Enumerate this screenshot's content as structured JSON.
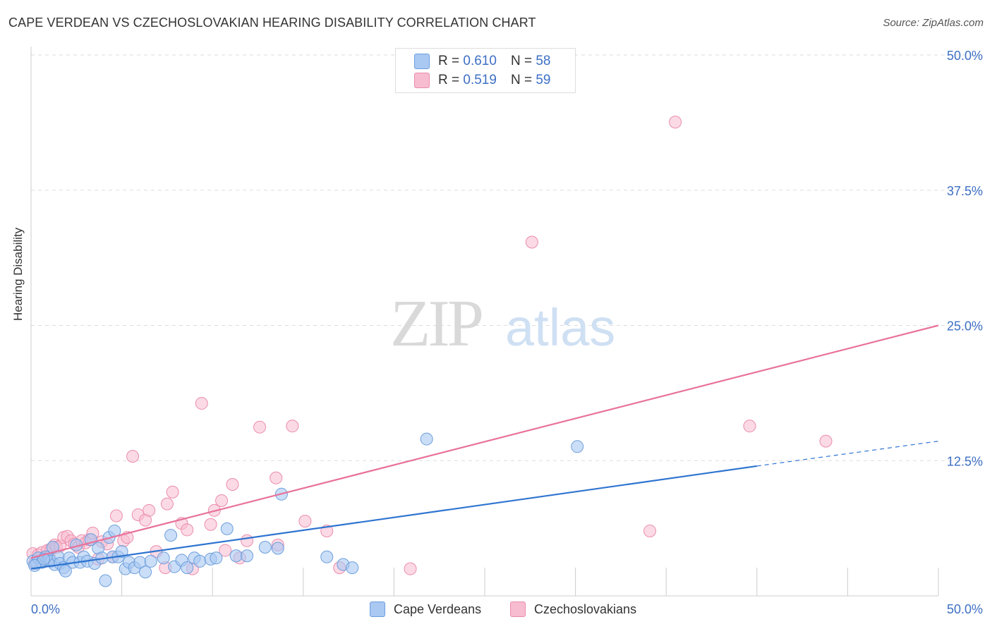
{
  "title": "CAPE VERDEAN VS CZECHOSLOVAKIAN HEARING DISABILITY CORRELATION CHART",
  "source": "Source: ZipAtlas.com",
  "watermark": {
    "zip": "ZIP",
    "atlas": "atlas"
  },
  "legend": [
    {
      "r_label": "R =",
      "r_value": "0.610",
      "n_label": "N =",
      "n_value": "58"
    },
    {
      "r_label": "R =",
      "r_value": "0.519",
      "n_label": "N =",
      "n_value": "59"
    }
  ],
  "bottom_legend": [
    "Cape Verdeans",
    "Czechoslovakians"
  ],
  "colors": {
    "blue_fill": "#a9c8f2",
    "blue_stroke": "#6d9fdc",
    "blue_line": "#2e74d0",
    "pink_fill": "#f7bcd0",
    "pink_stroke": "#eb8cac",
    "pink_line": "#e8729a",
    "tick_label": "#3d6fc4",
    "grid": "#dddddd"
  },
  "chart_data": {
    "type": "scatter",
    "title": "CAPE VERDEAN VS CZECHOSLOVAKIAN HEARING DISABILITY CORRELATION CHART",
    "xlabel": "",
    "ylabel": "Hearing Disability",
    "xlim": [
      0,
      50
    ],
    "ylim": [
      0,
      50
    ],
    "x_tick_labels": [
      "0.0%",
      "50.0%"
    ],
    "y_ticks": [
      {
        "value": 12.5,
        "label": "12.5%"
      },
      {
        "value": 25.0,
        "label": "25.0%"
      },
      {
        "value": 37.5,
        "label": "37.5%"
      },
      {
        "value": 50.0,
        "label": "50.0%"
      }
    ],
    "series": [
      {
        "name": "Cape Verdeans",
        "r": 0.61,
        "n": 58,
        "points": [
          [
            0.1,
            3.2
          ],
          [
            0.3,
            3.0
          ],
          [
            0.4,
            3.5
          ],
          [
            0.6,
            3.1
          ],
          [
            0.8,
            3.6
          ],
          [
            0.9,
            3.3
          ],
          [
            1.0,
            3.4
          ],
          [
            1.1,
            3.2
          ],
          [
            1.2,
            4.5
          ],
          [
            1.3,
            2.9
          ],
          [
            1.5,
            3.6
          ],
          [
            1.6,
            3.0
          ],
          [
            1.8,
            2.6
          ],
          [
            1.9,
            2.3
          ],
          [
            2.1,
            3.5
          ],
          [
            2.3,
            3.1
          ],
          [
            2.5,
            4.7
          ],
          [
            2.7,
            3.1
          ],
          [
            2.9,
            3.6
          ],
          [
            3.1,
            3.2
          ],
          [
            3.3,
            5.2
          ],
          [
            3.5,
            3.0
          ],
          [
            3.7,
            4.4
          ],
          [
            3.9,
            3.5
          ],
          [
            4.1,
            1.4
          ],
          [
            4.3,
            5.4
          ],
          [
            4.5,
            3.6
          ],
          [
            4.6,
            6.0
          ],
          [
            4.8,
            3.6
          ],
          [
            5.0,
            4.1
          ],
          [
            5.2,
            2.5
          ],
          [
            5.4,
            3.1
          ],
          [
            5.7,
            2.6
          ],
          [
            6.0,
            3.1
          ],
          [
            6.3,
            2.2
          ],
          [
            6.6,
            3.2
          ],
          [
            7.3,
            3.5
          ],
          [
            7.7,
            5.6
          ],
          [
            7.9,
            2.7
          ],
          [
            8.3,
            3.3
          ],
          [
            8.6,
            2.6
          ],
          [
            9.0,
            3.5
          ],
          [
            9.3,
            3.2
          ],
          [
            9.9,
            3.4
          ],
          [
            10.2,
            3.5
          ],
          [
            10.8,
            6.2
          ],
          [
            11.3,
            3.7
          ],
          [
            11.9,
            3.7
          ],
          [
            12.9,
            4.5
          ],
          [
            13.6,
            4.4
          ],
          [
            13.8,
            9.4
          ],
          [
            16.3,
            3.6
          ],
          [
            17.2,
            2.9
          ],
          [
            17.7,
            2.6
          ],
          [
            21.8,
            14.5
          ],
          [
            30.1,
            13.8
          ],
          [
            0.2,
            2.8
          ],
          [
            0.7,
            3.4
          ]
        ],
        "trend": {
          "x1": 0,
          "y1": 2.5,
          "x2": 40,
          "y2": 12.0,
          "dashed_to_x": 50,
          "dashed_to_y": 14.3
        }
      },
      {
        "name": "Czechoslovakians",
        "r": 0.519,
        "n": 59,
        "points": [
          [
            0.1,
            3.9
          ],
          [
            0.2,
            3.0
          ],
          [
            0.4,
            3.8
          ],
          [
            0.6,
            4.0
          ],
          [
            0.8,
            3.4
          ],
          [
            0.9,
            4.2
          ],
          [
            1.0,
            3.6
          ],
          [
            1.1,
            4.3
          ],
          [
            1.3,
            4.7
          ],
          [
            1.4,
            4.5
          ],
          [
            1.6,
            4.6
          ],
          [
            1.8,
            5.4
          ],
          [
            2.0,
            5.5
          ],
          [
            2.2,
            5.1
          ],
          [
            2.4,
            4.8
          ],
          [
            2.6,
            4.5
          ],
          [
            2.8,
            5.1
          ],
          [
            3.0,
            4.9
          ],
          [
            3.2,
            5.2
          ],
          [
            3.4,
            5.8
          ],
          [
            3.7,
            3.4
          ],
          [
            3.9,
            5.0
          ],
          [
            4.2,
            4.8
          ],
          [
            4.5,
            3.6
          ],
          [
            4.7,
            7.4
          ],
          [
            5.1,
            5.1
          ],
          [
            5.3,
            5.4
          ],
          [
            5.6,
            12.9
          ],
          [
            5.9,
            7.5
          ],
          [
            6.3,
            7.0
          ],
          [
            6.5,
            7.9
          ],
          [
            6.9,
            4.1
          ],
          [
            7.4,
            2.6
          ],
          [
            7.5,
            8.5
          ],
          [
            7.8,
            9.6
          ],
          [
            8.3,
            6.7
          ],
          [
            8.6,
            6.1
          ],
          [
            8.9,
            2.5
          ],
          [
            9.4,
            17.8
          ],
          [
            9.9,
            6.6
          ],
          [
            10.1,
            7.9
          ],
          [
            10.5,
            8.8
          ],
          [
            10.7,
            4.2
          ],
          [
            11.1,
            10.3
          ],
          [
            11.5,
            3.5
          ],
          [
            11.9,
            5.1
          ],
          [
            12.6,
            15.6
          ],
          [
            13.5,
            10.9
          ],
          [
            13.6,
            4.7
          ],
          [
            14.4,
            15.7
          ],
          [
            15.1,
            6.9
          ],
          [
            16.3,
            6.0
          ],
          [
            17.0,
            2.6
          ],
          [
            20.9,
            2.5
          ],
          [
            27.6,
            32.7
          ],
          [
            34.1,
            6.0
          ],
          [
            35.5,
            43.8
          ],
          [
            39.6,
            15.7
          ],
          [
            43.8,
            14.3
          ]
        ],
        "trend": {
          "x1": 0,
          "y1": 3.5,
          "x2": 50,
          "y2": 25.0
        }
      }
    ]
  }
}
